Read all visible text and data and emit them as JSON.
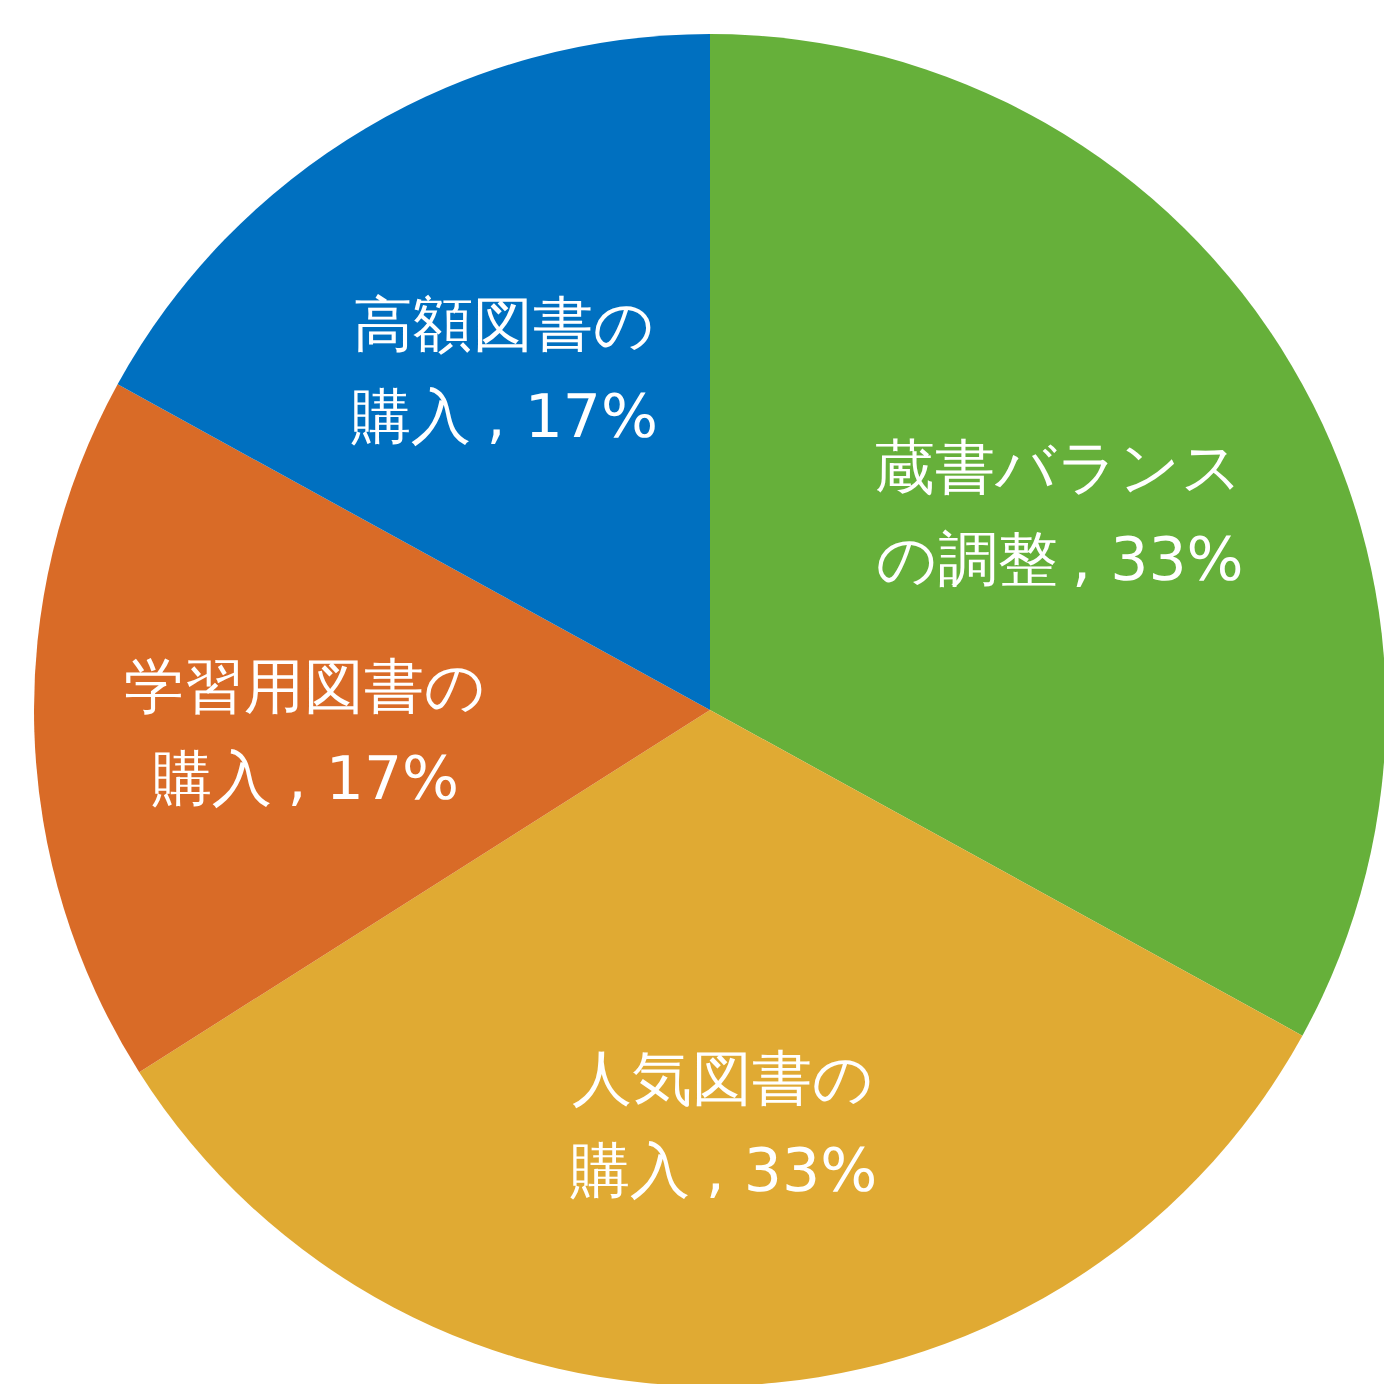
{
  "chart_data": {
    "type": "pie",
    "categories": [
      "蔵書バランスの調整",
      "人気図書の購入",
      "学習用図書の購入",
      "高額図書の購入"
    ],
    "values": [
      33,
      33,
      17,
      17
    ],
    "value_labels": [
      ", 33%",
      ", 33%",
      ", 17%",
      ", 17%"
    ],
    "colors": [
      "#66b03a",
      "#e0aa33",
      "#d96b27",
      "#0070c0"
    ]
  }
}
